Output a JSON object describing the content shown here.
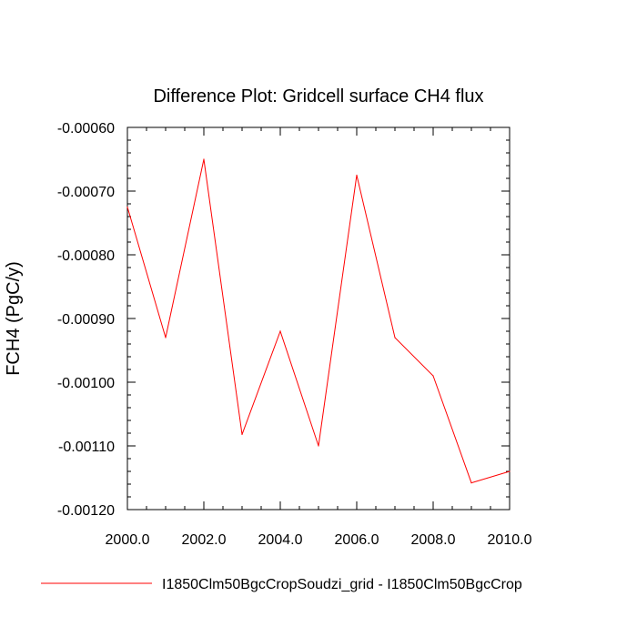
{
  "chart_data": {
    "type": "line",
    "title": "Difference Plot: Gridcell surface CH4 flux",
    "xlabel": "",
    "ylabel": "FCH4  (PgC/y)",
    "xlim": [
      2000,
      2010
    ],
    "ylim": [
      -0.0012,
      -0.0006
    ],
    "x_ticks": [
      "2000.0",
      "2002.0",
      "2004.0",
      "2006.0",
      "2008.0",
      "2010.0"
    ],
    "y_ticks": [
      "-0.00060",
      "-0.00070",
      "-0.00080",
      "-0.00090",
      "-0.00100",
      "-0.00110",
      "-0.00120"
    ],
    "grid": false,
    "legend_position": "bottom",
    "series": [
      {
        "name": "I1850Clm50BgcCropSoudzi_grid - I1850Clm50BgcCrop",
        "color": "#ff0000",
        "x": [
          2000,
          2001,
          2002,
          2003,
          2004,
          2005,
          2006,
          2007,
          2008,
          2009,
          2010
        ],
        "values": [
          -0.000725,
          -0.00093,
          -0.00065,
          -0.001082,
          -0.00092,
          -0.0011,
          -0.000675,
          -0.00093,
          -0.00099,
          -0.001158,
          -0.00114
        ]
      }
    ]
  }
}
